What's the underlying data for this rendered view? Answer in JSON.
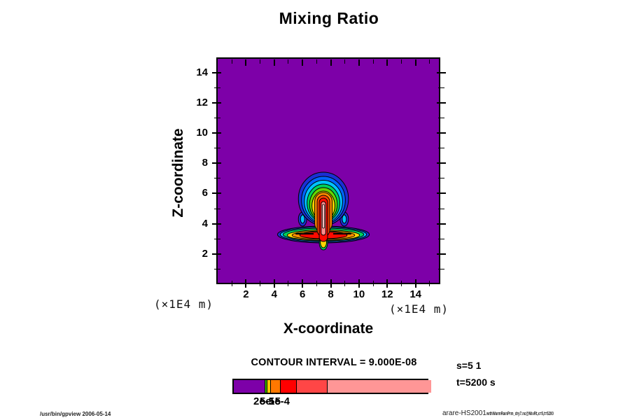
{
  "title": "Mixing Ratio",
  "plot": {
    "background": "#7D00A8",
    "border_color": "#000000"
  },
  "axes": {
    "x": {
      "label": "X-coordinate",
      "unit": "(×1E4 m)",
      "major_ticks": [
        2,
        4,
        6,
        8,
        10,
        12,
        14
      ],
      "minor_ticks": [
        1,
        3,
        5,
        7,
        9,
        11,
        13,
        15
      ]
    },
    "y": {
      "label": "Z-coordinate",
      "unit": "(×1E4 m)",
      "major_ticks": [
        2,
        4,
        6,
        8,
        10,
        12,
        14
      ],
      "minor_ticks": [
        1,
        3,
        5,
        7,
        9,
        11,
        13
      ]
    }
  },
  "plume": {
    "layers": [
      {
        "name": "level-1-navy",
        "color": "#1B2FD4"
      },
      {
        "name": "level-2-blue",
        "color": "#0064FF"
      },
      {
        "name": "level-3-cyan",
        "color": "#00C3FF"
      },
      {
        "name": "level-4-spring",
        "color": "#00D25A"
      },
      {
        "name": "level-5-green",
        "color": "#66D400"
      },
      {
        "name": "level-6-yellow",
        "color": "#FFD500"
      },
      {
        "name": "level-7-orange",
        "color": "#FF8C00"
      },
      {
        "name": "level-8-redorange",
        "color": "#FF4600"
      },
      {
        "name": "level-9-red",
        "color": "#FF0A00"
      },
      {
        "name": "level-10-salmon",
        "color": "#FF8C8C"
      },
      {
        "name": "level-11-pale",
        "color": "#FFC3C3"
      }
    ]
  },
  "legend": {
    "contour_interval_text": "CONTOUR INTERVAL = 9.000E-08",
    "colorbar": {
      "segments": [
        {
          "color": "#7D00A8",
          "frac": 0.158
        },
        {
          "color": "#3CBE00",
          "frac": 0.01
        },
        {
          "color": "#FFC800",
          "frac": 0.014
        },
        {
          "color": "#FF7800",
          "frac": 0.047
        },
        {
          "color": "#FF0000",
          "frac": 0.079
        },
        {
          "color": "#FF4646",
          "frac": 0.156
        },
        {
          "color": "#FF9696",
          "frac": 0.536
        }
      ],
      "tick_labels": [
        {
          "text": "2e-5",
          "dx": 0
        },
        {
          "text": "5e-5",
          "dx": 9
        },
        {
          "text": "1e-4",
          "dx": 22
        }
      ]
    },
    "annotation_line1": "s=5 1",
    "annotation_line2": "t=5200 s"
  },
  "footer": {
    "left": "/usr/bin/gpview 2006-05-14",
    "right_main": "arare-HS2001",
    "right_small": "withWarmRainPrm_dry7.nc@MixRt,x=5,t=5200"
  },
  "chart_data": {
    "type": "heatmap",
    "subtype": "filled-contour",
    "title": "Mixing Ratio",
    "xlabel": "X-coordinate",
    "ylabel": "Z-coordinate",
    "x_unit": "(×1E4 m)",
    "y_unit": "(×1E4 m)",
    "xlim": [
      0,
      15.75
    ],
    "ylim": [
      0,
      15
    ],
    "x_ticks": [
      2,
      4,
      6,
      8,
      10,
      12,
      14
    ],
    "y_ticks": [
      2,
      4,
      6,
      8,
      10,
      12,
      14
    ],
    "grid": false,
    "contour_interval": 9e-08,
    "colorbar_labels": [
      "2e-5",
      "5e-5",
      "1e-4"
    ],
    "annotations": [
      "s=5 1",
      "t=5200 s"
    ],
    "features": {
      "description": "mushroom-shaped plume on uniform purple (minimum) background",
      "plume_center_x": 7.3,
      "cap_z_range": [
        4.5,
        7.0
      ],
      "stem_z_range": [
        3.0,
        6.3
      ],
      "arms_z": 3.3,
      "arms_x_range": [
        4.4,
        10.0
      ],
      "value_order_outer_to_inner": [
        "purple",
        "blue",
        "cyan",
        "green",
        "yellow",
        "orange",
        "red",
        "salmon"
      ]
    }
  }
}
